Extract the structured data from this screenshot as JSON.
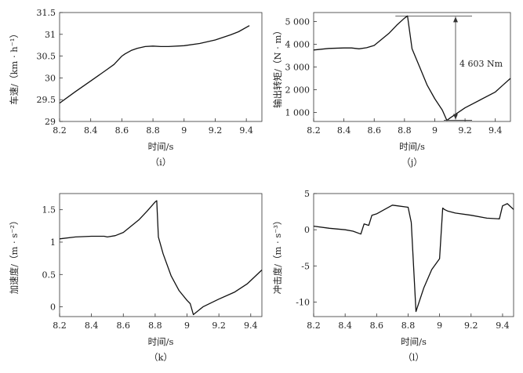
{
  "charts": [
    {
      "type": "line",
      "panel_label": "（i）",
      "xlabel": "时间/s",
      "ylabel": "车速/（km · h⁻¹）",
      "xlim": [
        8.2,
        9.5
      ],
      "ylim": [
        29,
        31.5
      ],
      "xticks": [
        "8.2",
        "8.4",
        "8.6",
        "8.8",
        "9",
        "9.2",
        "9.4"
      ],
      "yticks": [
        "29",
        "29.5",
        "30",
        "30.5",
        "31",
        "31.5"
      ],
      "grid": false,
      "x": [
        8.2,
        8.3,
        8.4,
        8.5,
        8.55,
        8.6,
        8.62,
        8.66,
        8.7,
        8.75,
        8.8,
        8.85,
        8.9,
        9.0,
        9.1,
        9.2,
        9.3,
        9.35,
        9.42
      ],
      "y": [
        29.42,
        29.68,
        29.93,
        30.18,
        30.31,
        30.5,
        30.55,
        30.63,
        30.68,
        30.72,
        30.73,
        30.72,
        30.72,
        30.74,
        30.79,
        30.87,
        30.99,
        31.06,
        31.2
      ]
    },
    {
      "type": "line",
      "panel_label": "（j）",
      "xlabel": "时间/s",
      "ylabel": "输出转矩/（N · m）",
      "xlim": [
        8.2,
        9.5
      ],
      "ylim": [
        600,
        5400
      ],
      "xticks": [
        "8.2",
        "8.4",
        "8.6",
        "8.8",
        "9",
        "9.2",
        "9.4"
      ],
      "yticks": [
        "1 000",
        "2 000",
        "3 000",
        "4 000",
        "5 000"
      ],
      "grid": false,
      "annotation": "4 603 Nm",
      "x": [
        8.2,
        8.3,
        8.4,
        8.45,
        8.5,
        8.55,
        8.6,
        8.7,
        8.75,
        8.8,
        8.82,
        8.85,
        8.9,
        8.95,
        9.0,
        9.05,
        9.08,
        9.1,
        9.2,
        9.3,
        9.4,
        9.45,
        9.5
      ],
      "y": [
        3750,
        3820,
        3840,
        3840,
        3800,
        3850,
        3950,
        4500,
        4850,
        5150,
        5250,
        3800,
        3000,
        2200,
        1600,
        1100,
        650,
        750,
        1200,
        1550,
        1900,
        2200,
        2500
      ]
    },
    {
      "type": "line",
      "panel_label": "（k）",
      "xlabel": "时间/s",
      "ylabel": "加速度/（m · s⁻²）",
      "xlim": [
        8.2,
        9.47
      ],
      "ylim": [
        -0.15,
        1.75
      ],
      "xticks": [
        "8.2",
        "8.4",
        "8.6",
        "8.8",
        "9",
        "9.2",
        "9.4"
      ],
      "yticks": [
        "0",
        "0.5",
        "1",
        "1.5"
      ],
      "grid": false,
      "x": [
        8.2,
        8.3,
        8.4,
        8.48,
        8.5,
        8.55,
        8.6,
        8.7,
        8.75,
        8.8,
        8.81,
        8.82,
        8.85,
        8.9,
        8.95,
        9.0,
        9.02,
        9.04,
        9.1,
        9.2,
        9.3,
        9.38,
        9.47
      ],
      "y": [
        1.05,
        1.08,
        1.09,
        1.09,
        1.08,
        1.1,
        1.15,
        1.35,
        1.48,
        1.62,
        1.64,
        1.08,
        0.82,
        0.48,
        0.25,
        0.1,
        0.05,
        -0.12,
        0.0,
        0.12,
        0.23,
        0.36,
        0.57
      ]
    },
    {
      "type": "line",
      "panel_label": "（l）",
      "xlabel": "时间/s",
      "ylabel": "冲击度/（m · s⁻³）",
      "xlim": [
        8.2,
        9.47
      ],
      "ylim": [
        -12,
        5
      ],
      "xticks": [
        "8.2",
        "8.4",
        "8.6",
        "8.8",
        "9",
        "9.2",
        "9.4"
      ],
      "yticks": [
        "-10",
        "-5",
        "0",
        "5"
      ],
      "grid": false,
      "x": [
        8.2,
        8.3,
        8.4,
        8.45,
        8.5,
        8.52,
        8.55,
        8.57,
        8.6,
        8.65,
        8.7,
        8.8,
        8.82,
        8.85,
        8.9,
        8.95,
        9.0,
        9.02,
        9.03,
        9.05,
        9.1,
        9.2,
        9.3,
        9.38,
        9.4,
        9.43,
        9.47
      ],
      "y": [
        0.5,
        0.2,
        0.0,
        -0.2,
        -0.6,
        0.8,
        0.6,
        2.0,
        2.2,
        2.8,
        3.4,
        3.1,
        1.0,
        -11.3,
        -8.0,
        -5.5,
        -4.0,
        3.0,
        2.8,
        2.6,
        2.3,
        2.0,
        1.6,
        1.5,
        3.3,
        3.6,
        2.8
      ]
    }
  ]
}
